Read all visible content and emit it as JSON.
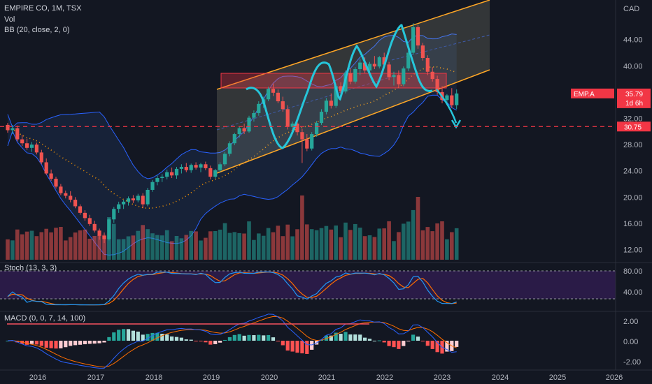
{
  "header": {
    "symbol_line": "EMPIRE CO, 1M, TSX",
    "vol_label": "Vol",
    "bb_label": "BB (20, close, 2, 0)"
  },
  "panes": {
    "stoch_label": "Stoch (13, 3, 3)",
    "macd_label": "MACD (0, 0, 7, 14, 100)"
  },
  "colors": {
    "bg": "#131722",
    "up": "#26a69a",
    "down": "#ef5350",
    "bb": "#2962ff",
    "bb_fill": "#1c2c4a",
    "basis": "#ff9800",
    "channel": "#ffa726",
    "pattern": "#26c6da",
    "stoch_k": "#2196f3",
    "stoch_d": "#ff6d00",
    "stoch_fill": "#2a1b47",
    "support": "#f23645",
    "zone": "#f2364555"
  },
  "chart_data": {
    "type": "candlestick",
    "currency": "CAD",
    "price_axis_ticks": [
      12.0,
      16.0,
      20.0,
      24.0,
      28.0,
      32.0,
      36.0,
      40.0,
      44.0
    ],
    "time_axis_ticks": [
      "2016",
      "2017",
      "2018",
      "2019",
      "2020",
      "2021",
      "2022",
      "2023",
      "2024",
      "2025",
      "2026"
    ],
    "last_price": {
      "label": "EMP.A",
      "value": "35.79",
      "countdown": "1d 6h"
    },
    "support_level": {
      "value": "30.75"
    },
    "stoch_ticks": [
      "80.00",
      "40.00"
    ],
    "macd_ticks": [
      "2.00",
      "0.00",
      "-2.00"
    ],
    "candles_monthly_from_2015_07": [
      [
        31.0,
        31.3,
        29.8,
        30.2
      ],
      [
        30.2,
        31.0,
        29.6,
        30.5
      ],
      [
        30.5,
        30.9,
        28.5,
        28.8
      ],
      [
        28.8,
        29.5,
        27.8,
        28.2
      ],
      [
        28.2,
        28.9,
        27.2,
        27.5
      ],
      [
        27.5,
        28.4,
        26.9,
        28.0
      ],
      [
        28.0,
        28.3,
        26.5,
        26.8
      ],
      [
        26.8,
        27.2,
        25.0,
        25.3
      ],
      [
        25.3,
        25.9,
        23.4,
        23.6
      ],
      [
        23.6,
        24.2,
        22.5,
        22.8
      ],
      [
        22.8,
        23.1,
        21.3,
        21.6
      ],
      [
        21.6,
        22.0,
        20.3,
        20.6
      ],
      [
        20.6,
        21.0,
        19.8,
        20.2
      ],
      [
        20.2,
        20.9,
        19.2,
        19.6
      ],
      [
        19.6,
        20.0,
        18.3,
        18.6
      ],
      [
        18.6,
        18.9,
        17.3,
        17.6
      ],
      [
        17.6,
        18.0,
        16.4,
        16.8
      ],
      [
        16.8,
        17.3,
        15.6,
        15.9
      ],
      [
        15.9,
        16.4,
        14.6,
        14.9
      ],
      [
        14.9,
        15.2,
        13.5,
        14.1
      ],
      [
        14.1,
        14.6,
        13.0,
        13.6
      ],
      [
        13.6,
        16.8,
        13.4,
        16.6
      ],
      [
        16.6,
        18.5,
        16.1,
        18.2
      ],
      [
        18.2,
        19.3,
        17.6,
        18.9
      ],
      [
        18.9,
        19.6,
        18.2,
        19.3
      ],
      [
        19.3,
        20.1,
        18.7,
        19.8
      ],
      [
        19.8,
        20.3,
        19.1,
        19.5
      ],
      [
        19.5,
        20.5,
        19.2,
        20.2
      ],
      [
        20.2,
        20.6,
        18.3,
        18.9
      ],
      [
        18.9,
        21.4,
        18.6,
        21.1
      ],
      [
        21.1,
        22.6,
        20.8,
        22.3
      ],
      [
        22.3,
        23.3,
        21.8,
        22.9
      ],
      [
        22.9,
        23.5,
        22.3,
        23.1
      ],
      [
        23.1,
        24.2,
        22.7,
        23.8
      ],
      [
        23.8,
        24.5,
        22.9,
        23.3
      ],
      [
        23.3,
        24.6,
        22.8,
        24.3
      ],
      [
        24.3,
        25.0,
        23.6,
        24.6
      ],
      [
        24.6,
        25.2,
        23.8,
        24.1
      ],
      [
        24.1,
        25.1,
        23.7,
        24.9
      ],
      [
        24.9,
        25.3,
        24.2,
        24.5
      ],
      [
        24.5,
        25.2,
        23.8,
        25.0
      ],
      [
        25.0,
        25.4,
        24.1,
        24.4
      ],
      [
        24.4,
        24.8,
        22.7,
        23.1
      ],
      [
        23.1,
        24.3,
        22.8,
        24.1
      ],
      [
        24.1,
        25.3,
        23.8,
        25.0
      ],
      [
        25.0,
        26.9,
        24.7,
        26.6
      ],
      [
        26.6,
        28.5,
        26.2,
        28.2
      ],
      [
        28.2,
        29.8,
        27.9,
        29.6
      ],
      [
        29.6,
        30.8,
        29.1,
        30.5
      ],
      [
        30.5,
        31.2,
        29.6,
        30.0
      ],
      [
        30.0,
        32.4,
        29.8,
        32.1
      ],
      [
        32.1,
        33.2,
        31.5,
        32.8
      ],
      [
        32.8,
        34.6,
        32.4,
        34.2
      ],
      [
        34.2,
        35.3,
        33.6,
        34.9
      ],
      [
        34.9,
        36.8,
        34.6,
        36.5
      ],
      [
        36.5,
        37.3,
        35.4,
        35.9
      ],
      [
        35.9,
        36.4,
        34.3,
        34.6
      ],
      [
        34.6,
        35.3,
        33.0,
        33.4
      ],
      [
        33.4,
        34.0,
        30.3,
        30.7
      ],
      [
        30.7,
        31.5,
        29.6,
        31.2
      ],
      [
        31.2,
        31.8,
        29.4,
        29.9
      ],
      [
        29.9,
        30.4,
        25.2,
        28.8
      ],
      [
        28.8,
        29.6,
        27.0,
        27.4
      ],
      [
        27.4,
        29.9,
        27.1,
        29.6
      ],
      [
        29.6,
        31.6,
        29.2,
        31.3
      ],
      [
        31.3,
        33.4,
        31.0,
        33.0
      ],
      [
        33.0,
        35.1,
        32.6,
        34.7
      ],
      [
        34.7,
        35.8,
        33.5,
        33.9
      ],
      [
        33.9,
        37.3,
        33.6,
        36.9
      ],
      [
        36.9,
        37.5,
        35.6,
        36.1
      ],
      [
        36.1,
        39.3,
        35.8,
        38.9
      ],
      [
        38.9,
        39.6,
        37.2,
        37.6
      ],
      [
        37.6,
        39.8,
        37.3,
        39.5
      ],
      [
        39.5,
        41.0,
        38.6,
        40.5
      ],
      [
        40.5,
        41.3,
        38.9,
        39.3
      ],
      [
        39.3,
        40.6,
        38.8,
        40.3
      ],
      [
        40.3,
        41.5,
        39.5,
        39.9
      ],
      [
        39.9,
        41.5,
        39.6,
        41.3
      ],
      [
        41.3,
        42.0,
        39.8,
        40.2
      ],
      [
        40.2,
        40.6,
        37.8,
        38.3
      ],
      [
        38.3,
        39.1,
        37.0,
        38.6
      ],
      [
        38.6,
        39.3,
        36.8,
        37.2
      ],
      [
        37.2,
        39.9,
        36.9,
        39.6
      ],
      [
        39.6,
        42.3,
        39.2,
        42.0
      ],
      [
        42.0,
        46.5,
        41.7,
        45.9
      ],
      [
        45.9,
        46.2,
        42.6,
        43.1
      ],
      [
        43.1,
        43.5,
        40.8,
        41.2
      ],
      [
        41.2,
        41.6,
        38.6,
        39.1
      ],
      [
        39.1,
        39.8,
        37.6,
        38.0
      ],
      [
        38.0,
        38.5,
        35.6,
        36.0
      ],
      [
        36.0,
        36.9,
        34.3,
        34.8
      ],
      [
        34.8,
        35.7,
        34.0,
        35.5
      ],
      [
        35.5,
        36.6,
        33.6,
        34.0
      ],
      [
        34.0,
        36.4,
        33.4,
        35.79
      ]
    ],
    "series_overlays": [
      {
        "name": "BB upper"
      },
      {
        "name": "BB basis"
      },
      {
        "name": "BB lower"
      }
    ]
  }
}
